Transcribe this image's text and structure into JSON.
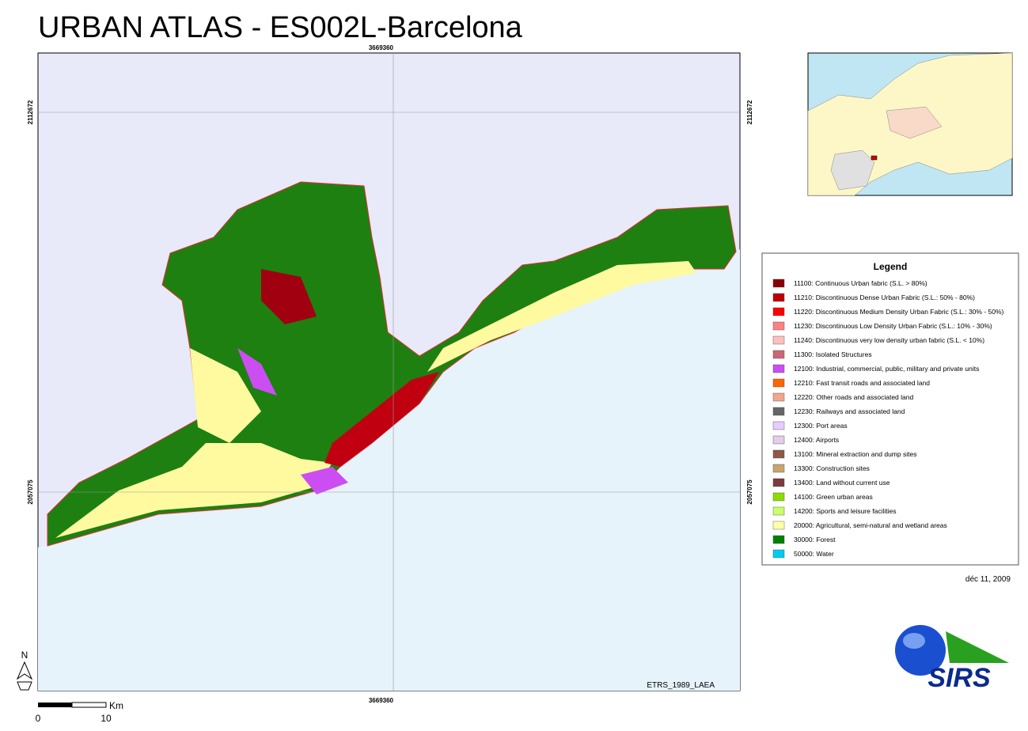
{
  "title": "URBAN ATLAS - ES002L-Barcelona",
  "grid_labels": {
    "top": "3669360",
    "bottom": "3669360",
    "left": [
      "2112672",
      "2057075"
    ],
    "right": [
      "2112672",
      "2057075"
    ]
  },
  "projection": "ETRS_1989_LAEA",
  "legend": {
    "title": "Legend",
    "items": [
      {
        "label": "11100: Continuous Urban fabric (S.L. > 80%)",
        "color": "#8b0000"
      },
      {
        "label": "11210: Discontinuous Dense Urban Fabric (S.L.: 50% - 80%)",
        "color": "#bf0000"
      },
      {
        "label": "11220: Discontinuous Medium Density Urban Fabric (S.L.: 30% - 50%)",
        "color": "#ff0000"
      },
      {
        "label": "11230: Discontinuous Low Density Urban Fabric (S.L.: 10% - 30%)",
        "color": "#ff8080"
      },
      {
        "label": "11240: Discontinuous very low density urban fabric (S.L. < 10%)",
        "color": "#ffbfbf"
      },
      {
        "label": "11300: Isolated Structures",
        "color": "#cc6677"
      },
      {
        "label": "12100: Industrial, commercial, public, military and private units",
        "color": "#cc4df2"
      },
      {
        "label": "12210: Fast transit roads and associated land",
        "color": "#ff6600"
      },
      {
        "label": "12220: Other roads and associated land",
        "color": "#f2a68c"
      },
      {
        "label": "12230: Railways and associated land",
        "color": "#666666"
      },
      {
        "label": "12300: Port areas",
        "color": "#e6ccff"
      },
      {
        "label": "12400: Airports",
        "color": "#e6cce6"
      },
      {
        "label": "13100: Mineral extraction and dump sites",
        "color": "#8c5a46"
      },
      {
        "label": "13300: Construction sites",
        "color": "#c8a56e"
      },
      {
        "label": "13400: Land without current use",
        "color": "#7a3c3c"
      },
      {
        "label": "14100: Green urban areas",
        "color": "#8cdc00"
      },
      {
        "label": "14200: Sports and leisure facilities",
        "color": "#ccff66"
      },
      {
        "label": "20000: Agricultural, semi-natural and wetland areas",
        "color": "#ffffa8"
      },
      {
        "label": "30000: Forest",
        "color": "#008000"
      },
      {
        "label": "50000: Water",
        "color": "#00ccf2"
      }
    ]
  },
  "date": "déc 11, 2009",
  "scale": {
    "unit": "Km",
    "labels": [
      "0",
      "10"
    ]
  },
  "north": "N",
  "logo": "SIRS"
}
